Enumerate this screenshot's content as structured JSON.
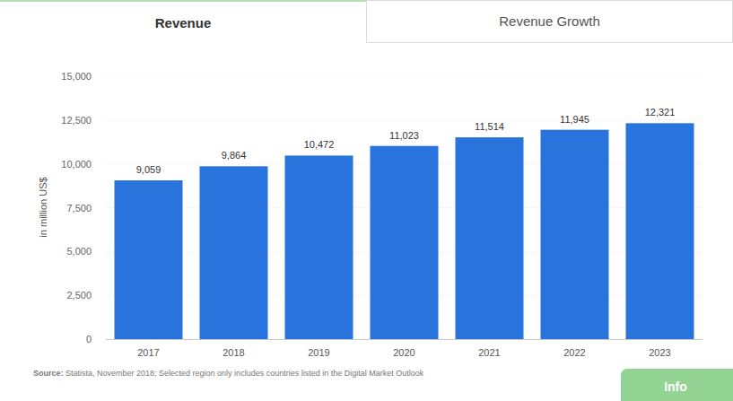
{
  "tabs": [
    "Revenue",
    "Revenue Growth"
  ],
  "source": {
    "label": "Source:",
    "text": "Statista, November 2018; Selected region only includes countries listed in the Digital Market Outlook"
  },
  "info_button": "Info",
  "chart_data": {
    "type": "bar",
    "y_label": "in million US$",
    "categories": [
      "2017",
      "2018",
      "2019",
      "2020",
      "2021",
      "2022",
      "2023"
    ],
    "values": [
      9059,
      9864,
      10472,
      11023,
      11514,
      11945,
      12321
    ],
    "value_labels": [
      "9,059",
      "9,864",
      "10,472",
      "11,023",
      "11,514",
      "11,945",
      "12,321"
    ],
    "color": "#2873dc",
    "ylim": [
      0,
      15000
    ],
    "yticks": [
      0,
      {
        "value": 2500,
        "label": "2,500"
      },
      {
        "value": 5000,
        "label": "5,000"
      },
      {
        "value": 7500,
        "label": "7,500"
      },
      {
        "value": 10000,
        "label": "10,000"
      },
      {
        "value": 12500,
        "label": "12,500"
      },
      {
        "value": 15000,
        "label": "15,000"
      }
    ],
    "grid": true,
    "data_labels": true
  }
}
